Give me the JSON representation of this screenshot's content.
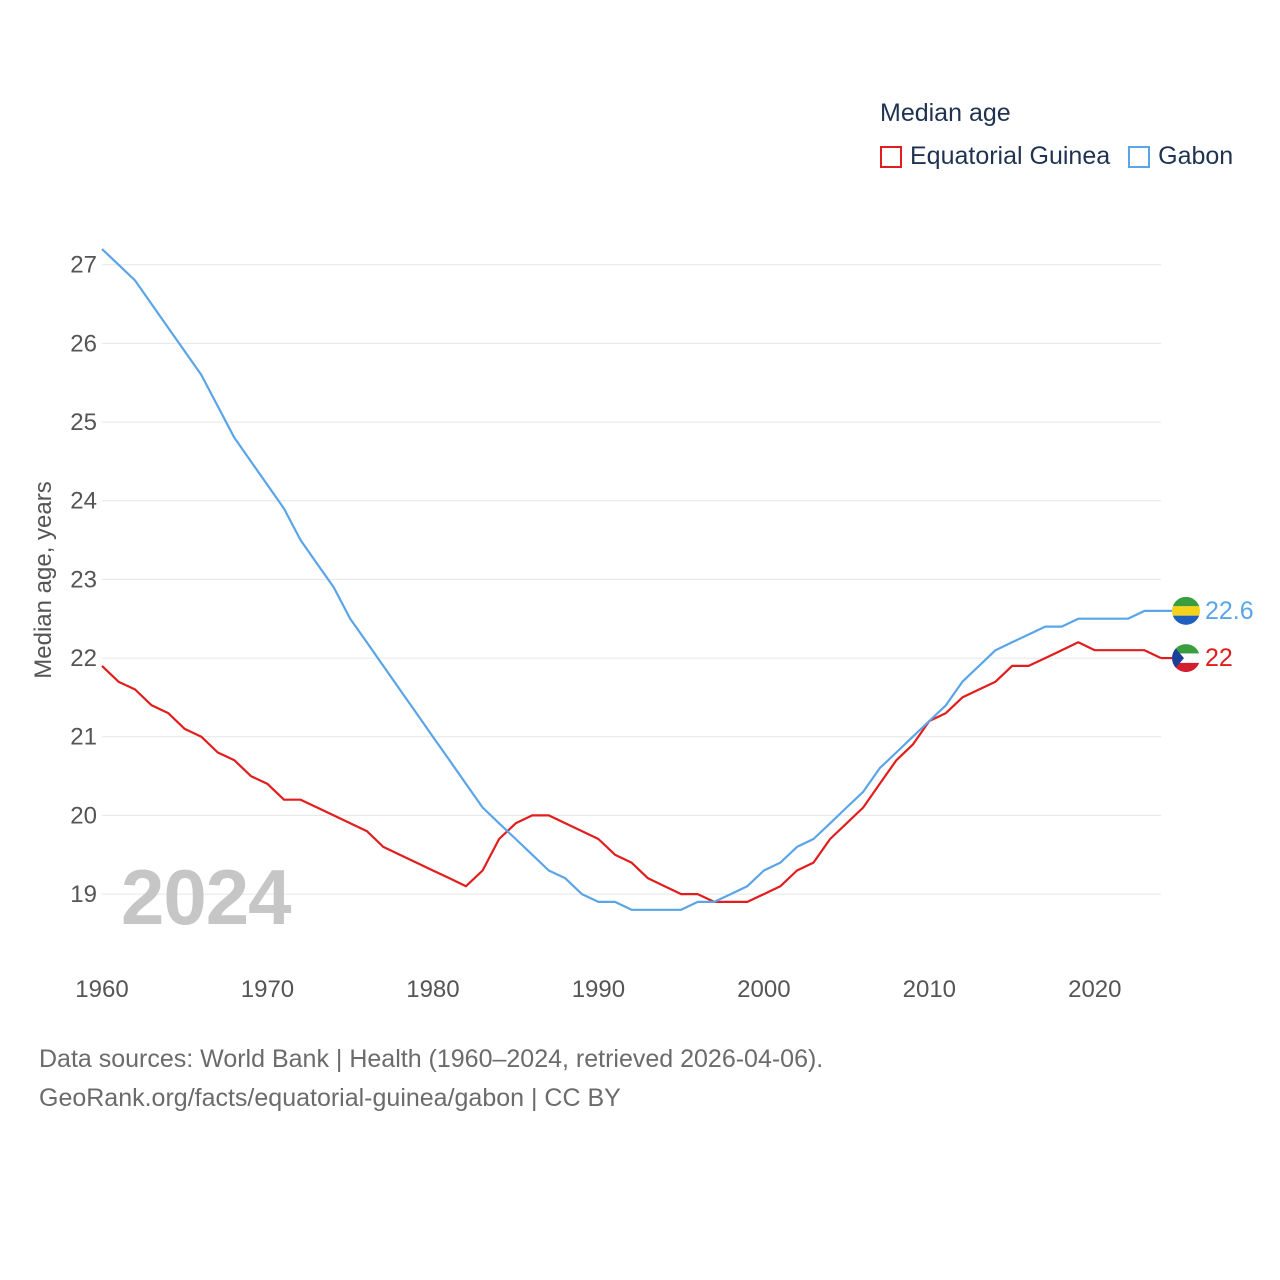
{
  "legend": {
    "title": "Median age",
    "items": [
      {
        "label": "Equatorial Guinea",
        "color": "#e11d1d"
      },
      {
        "label": "Gabon",
        "color": "#5aa5e8"
      }
    ]
  },
  "current_year": "2024",
  "footer": {
    "line1": "Data sources: World Bank | Health (1960–2024, retrieved 2026-04-06).",
    "line2": "GeoRank.org/facts/equatorial-guinea/gabon | CC BY"
  },
  "chart_data": {
    "type": "line",
    "title": "Median age",
    "xlabel": "",
    "ylabel": "Median age, years",
    "xlim": [
      1960,
      2024
    ],
    "ylim": [
      18.2,
      27.2
    ],
    "x_ticks": [
      1960,
      1970,
      1980,
      1990,
      2000,
      2010,
      2020
    ],
    "y_ticks": [
      19,
      20,
      21,
      22,
      23,
      24,
      25,
      26,
      27
    ],
    "grid": true,
    "legend_position": "top-right",
    "x": [
      1960,
      1961,
      1962,
      1963,
      1964,
      1965,
      1966,
      1967,
      1968,
      1969,
      1970,
      1971,
      1972,
      1973,
      1974,
      1975,
      1976,
      1977,
      1978,
      1979,
      1980,
      1981,
      1982,
      1983,
      1984,
      1985,
      1986,
      1987,
      1988,
      1989,
      1990,
      1991,
      1992,
      1993,
      1994,
      1995,
      1996,
      1997,
      1998,
      1999,
      2000,
      2001,
      2002,
      2003,
      2004,
      2005,
      2006,
      2007,
      2008,
      2009,
      2010,
      2011,
      2012,
      2013,
      2014,
      2015,
      2016,
      2017,
      2018,
      2019,
      2020,
      2021,
      2022,
      2023,
      2024
    ],
    "series": [
      {
        "name": "Equatorial Guinea",
        "color": "#e11d1d",
        "end_label": "22",
        "values": [
          21.9,
          21.7,
          21.6,
          21.4,
          21.3,
          21.1,
          21.0,
          20.8,
          20.7,
          20.5,
          20.4,
          20.2,
          20.2,
          20.1,
          20.0,
          19.9,
          19.8,
          19.6,
          19.5,
          19.4,
          19.3,
          19.2,
          19.1,
          19.3,
          19.7,
          19.9,
          20.0,
          20.0,
          19.9,
          19.8,
          19.7,
          19.5,
          19.4,
          19.2,
          19.1,
          19.0,
          19.0,
          18.9,
          18.9,
          18.9,
          19.0,
          19.1,
          19.3,
          19.4,
          19.7,
          19.9,
          20.1,
          20.4,
          20.7,
          20.9,
          21.2,
          21.3,
          21.5,
          21.6,
          21.7,
          21.9,
          21.9,
          22.0,
          22.1,
          22.2,
          22.1,
          22.1,
          22.1,
          22.1,
          22.0
        ]
      },
      {
        "name": "Gabon",
        "color": "#5aa5e8",
        "end_label": "22.6",
        "values": [
          27.2,
          27.0,
          26.8,
          26.5,
          26.2,
          25.9,
          25.6,
          25.2,
          24.8,
          24.5,
          24.2,
          23.9,
          23.5,
          23.2,
          22.9,
          22.5,
          22.2,
          21.9,
          21.6,
          21.3,
          21.0,
          20.7,
          20.4,
          20.1,
          19.9,
          19.7,
          19.5,
          19.3,
          19.2,
          19.0,
          18.9,
          18.9,
          18.8,
          18.8,
          18.8,
          18.8,
          18.9,
          18.9,
          19.0,
          19.1,
          19.3,
          19.4,
          19.6,
          19.7,
          19.9,
          20.1,
          20.3,
          20.6,
          20.8,
          21.0,
          21.2,
          21.4,
          21.7,
          21.9,
          22.1,
          22.2,
          22.3,
          22.4,
          22.4,
          22.5,
          22.5,
          22.5,
          22.5,
          22.6,
          22.6
        ]
      }
    ]
  }
}
